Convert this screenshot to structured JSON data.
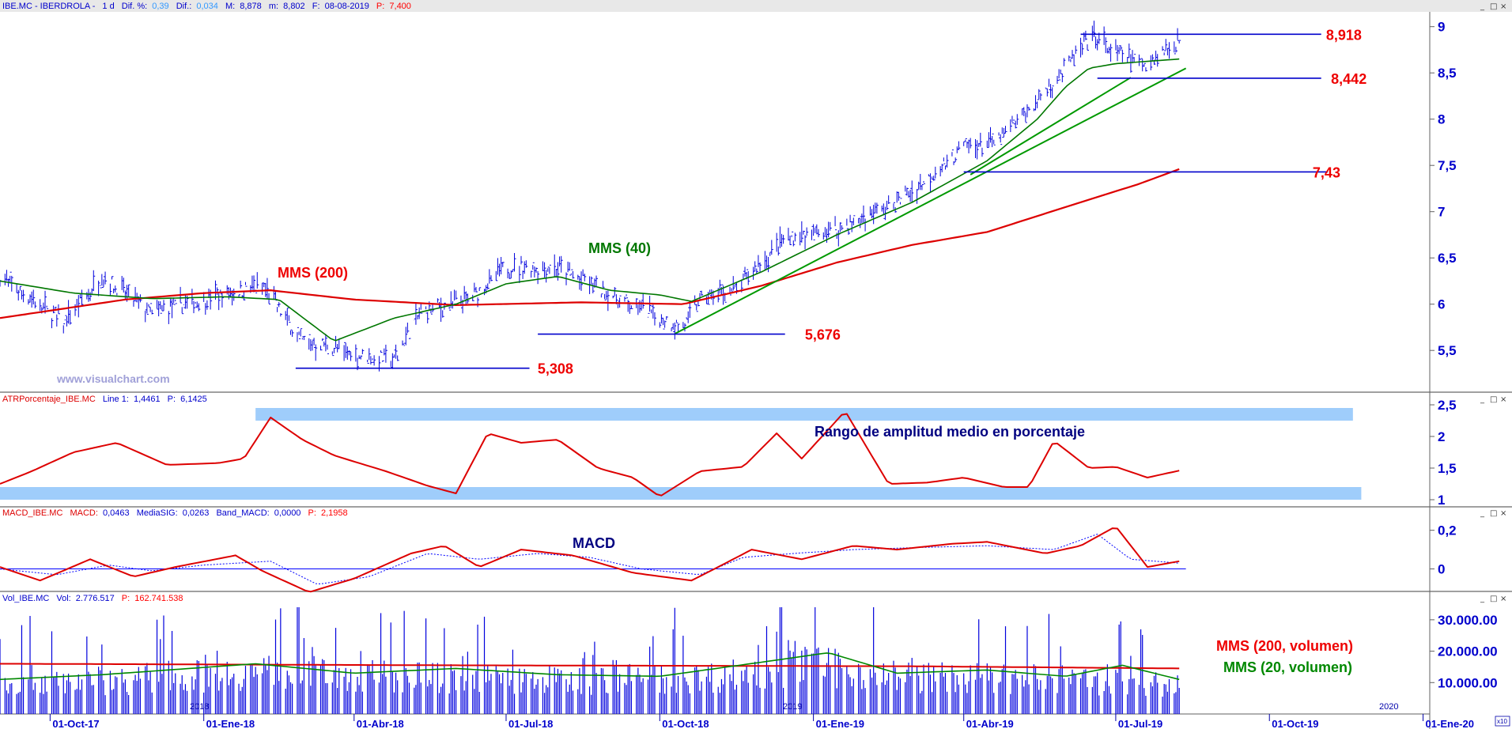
{
  "colors": {
    "price": "#0000dd",
    "mms200": "#dd0000",
    "mms40": "#007700",
    "trend": "#009900",
    "level": "#0000cc",
    "atr": "#dd0000",
    "band": "#9fcdfb",
    "macd": "#dd0000",
    "signal": "#0000ff",
    "volume": "#0000dd",
    "vol_mms200": "#dd0000",
    "vol_mms20": "#008800",
    "axis_text": "#0000cc",
    "annotation_red": "#ee0000",
    "annotation_green": "#007700",
    "annotation_navy": "#000080"
  },
  "header": {
    "price": {
      "symbol": "IBE.MC - IBERDROLA -",
      "period": "1 d",
      "dif_pct_label": "Dif. %:",
      "dif_pct": "0,39",
      "dif_label": "Dif.:",
      "dif": "0,034",
      "max_label": "M:",
      "max": "8,878",
      "min_label": "m:",
      "min": "8,802",
      "date_label": "F:",
      "date": "08-08-2019",
      "p_label": "P:",
      "p": "7,400"
    },
    "atr": {
      "name": "ATRPorcentaje_IBE.MC",
      "line_label": "Line 1:",
      "line": "1,4461",
      "p_label": "P:",
      "p": "6,1425"
    },
    "macd": {
      "name": "MACD_IBE.MC",
      "macd_label": "MACD:",
      "macd": "0,0463",
      "sig_label": "MediaSIG:",
      "sig": "0,0263",
      "band_label": "Band_MACD:",
      "band": "0,0000",
      "p_label": "P:",
      "p": "2,1958"
    },
    "volume": {
      "name": "Vol_IBE.MC",
      "vol_label": "Vol:",
      "vol": "2.776.517",
      "p_label": "P:",
      "p": "162.741.538"
    }
  },
  "watermark": "www.visualchart.com",
  "annotations": {
    "mms200": "MMS (200)",
    "mms40": "MMS (40)",
    "atr_title": "Rango de amplitud medio en porcentaje",
    "macd_title": "MACD",
    "vol_mms200": "MMS (200, volumen)",
    "vol_mms20": "MMS (20, volumen)"
  },
  "x_axis": {
    "labels": [
      "01-Oct-17",
      "01-Ene-18",
      "01-Abr-18",
      "01-Jul-18",
      "01-Oct-18",
      "01-Ene-19",
      "01-Abr-19",
      "01-Jul-19",
      "01-Oct-19",
      "01-Ene-20"
    ],
    "year_markers": [
      "2018",
      "2019",
      "2020"
    ],
    "scale_marker": "x10"
  },
  "chart_data": [
    {
      "type": "line",
      "title": "IBE.MC - IBERDROLA - 1 d",
      "x_range": [
        "2017-09-01",
        "2020-01-05"
      ],
      "ylim": [
        5.1,
        9.1
      ],
      "y_ticks": [
        "5,5",
        "6",
        "6,5",
        "7",
        "7,5",
        "8",
        "8,5",
        "9"
      ],
      "series": [
        {
          "name": "MMS (200)",
          "x": [
            "2017-09-01",
            "2017-11-15",
            "2018-01-01",
            "2018-02-10",
            "2018-04-01",
            "2018-06-01",
            "2018-08-15",
            "2018-10-15",
            "2018-12-01",
            "2019-01-15",
            "2019-03-01",
            "2019-04-15",
            "2019-06-01",
            "2019-07-15",
            "2019-08-08"
          ],
          "values": [
            5.85,
            6.05,
            6.12,
            6.15,
            6.05,
            5.99,
            6.02,
            6.0,
            6.2,
            6.45,
            6.64,
            6.78,
            7.05,
            7.3,
            7.46
          ]
        },
        {
          "name": "MMS (40)",
          "x": [
            "2017-09-01",
            "2017-10-15",
            "2017-12-01",
            "2018-01-15",
            "2018-02-15",
            "2018-03-20",
            "2018-04-25",
            "2018-06-01",
            "2018-07-01",
            "2018-08-01",
            "2018-09-01",
            "2018-10-01",
            "2018-10-20",
            "2018-12-01",
            "2019-01-15",
            "2019-03-01",
            "2019-04-15",
            "2019-05-15",
            "2019-06-01",
            "2019-06-15",
            "2019-07-01",
            "2019-08-08"
          ],
          "values": [
            6.25,
            6.12,
            6.06,
            6.08,
            6.05,
            5.6,
            5.85,
            6.0,
            6.22,
            6.3,
            6.15,
            6.1,
            6.03,
            6.35,
            6.75,
            7.1,
            7.55,
            8.0,
            8.35,
            8.55,
            8.6,
            8.65
          ]
        }
      ],
      "price_path": {
        "x": [
          "2017-09-01",
          "2017-10-10",
          "2017-11-01",
          "2017-12-01",
          "2018-01-10",
          "2018-02-05",
          "2018-03-01",
          "2018-03-15",
          "2018-04-01",
          "2018-04-25",
          "2018-05-10",
          "2018-06-10",
          "2018-07-01",
          "2018-08-01",
          "2018-09-01",
          "2018-10-15",
          "2018-10-25",
          "2018-11-15",
          "2018-12-15",
          "2019-01-15",
          "2019-02-15",
          "2019-03-10",
          "2019-04-01",
          "2019-04-20",
          "2019-05-15",
          "2019-06-10",
          "2019-06-20",
          "2019-07-01",
          "2019-07-20",
          "2019-08-08"
        ],
        "values": [
          6.3,
          5.8,
          6.3,
          5.9,
          6.1,
          6.2,
          5.6,
          5.55,
          5.45,
          5.4,
          5.9,
          6.05,
          6.4,
          6.4,
          6.1,
          5.75,
          6.05,
          6.15,
          6.7,
          6.8,
          7.05,
          7.35,
          7.7,
          7.75,
          8.2,
          8.75,
          8.9,
          8.7,
          8.6,
          8.85
        ]
      },
      "levels": [
        {
          "label": "8,918",
          "value": 8.918,
          "x_from": "2019-06-10",
          "x_to": "2019-11-01",
          "label_x": "2019-11-02"
        },
        {
          "label": "8,442",
          "value": 8.442,
          "x_from": "2019-06-20",
          "x_to": "2019-11-01",
          "label_x": "2019-11-05"
        },
        {
          "label": "7,43",
          "value": 7.43,
          "x_from": "2019-04-01",
          "x_to": "2019-11-05",
          "label_x": "2019-10-25"
        },
        {
          "label": "5,676",
          "value": 5.676,
          "x_from": "2018-07-20",
          "x_to": "2018-12-15",
          "label_x": "2018-12-25"
        },
        {
          "label": "5,308",
          "value": 5.308,
          "x_from": "2018-02-25",
          "x_to": "2018-07-15",
          "label_x": "2018-07-18"
        }
      ],
      "trendlines": [
        {
          "x": [
            "2018-10-10",
            "2019-08-12"
          ],
          "values": [
            5.68,
            8.55
          ]
        },
        {
          "x": [
            "2019-04-05",
            "2019-07-10"
          ],
          "values": [
            7.4,
            8.45
          ]
        }
      ]
    },
    {
      "type": "line",
      "title": "ATRPorcentaje_IBE.MC",
      "ylim": [
        0.95,
        2.5
      ],
      "y_ticks": [
        "1",
        "1,5",
        "2",
        "2,5"
      ],
      "bands": [
        {
          "x_from": "2018-02-01",
          "x_to": "2019-11-20",
          "y_from": 2.25,
          "y_to": 2.45
        },
        {
          "x_from": "2017-09-01",
          "x_to": "2019-11-25",
          "y_from": 1.0,
          "y_to": 1.2
        }
      ],
      "series": [
        {
          "name": "Line 1",
          "x": [
            "2017-09-01",
            "2017-09-20",
            "2017-10-15",
            "2017-11-10",
            "2017-12-10",
            "2018-01-10",
            "2018-01-25",
            "2018-02-10",
            "2018-03-01",
            "2018-03-20",
            "2018-04-20",
            "2018-05-15",
            "2018-06-01",
            "2018-06-20",
            "2018-07-10",
            "2018-08-01",
            "2018-08-25",
            "2018-09-15",
            "2018-10-01",
            "2018-10-25",
            "2018-11-20",
            "2018-12-10",
            "2018-12-25",
            "2019-01-20",
            "2019-02-15",
            "2019-03-10",
            "2019-04-01",
            "2019-04-25",
            "2019-05-10",
            "2019-05-25",
            "2019-06-15",
            "2019-07-01",
            "2019-07-20",
            "2019-08-08"
          ],
          "values": [
            1.25,
            1.45,
            1.75,
            1.9,
            1.55,
            1.58,
            1.65,
            2.3,
            1.95,
            1.7,
            1.45,
            1.22,
            1.1,
            2.05,
            1.9,
            1.95,
            1.5,
            1.35,
            1.05,
            1.45,
            1.52,
            2.05,
            1.65,
            2.4,
            1.25,
            1.27,
            1.35,
            1.2,
            1.2,
            1.93,
            1.5,
            1.52,
            1.35,
            1.46
          ]
        }
      ]
    },
    {
      "type": "line",
      "title": "MACD_IBE.MC",
      "ylim": [
        -0.1,
        0.26
      ],
      "y_ticks": [
        "0",
        "0,2"
      ],
      "series": [
        {
          "name": "MACD",
          "x": [
            "2017-09-01",
            "2017-09-25",
            "2017-10-25",
            "2017-11-20",
            "2017-12-15",
            "2018-01-20",
            "2018-02-05",
            "2018-03-05",
            "2018-04-01",
            "2018-05-05",
            "2018-05-25",
            "2018-06-15",
            "2018-07-10",
            "2018-08-10",
            "2018-09-15",
            "2018-10-20",
            "2018-11-05",
            "2018-11-25",
            "2018-12-25",
            "2019-01-25",
            "2019-02-20",
            "2019-03-25",
            "2019-04-15",
            "2019-05-20",
            "2019-06-10",
            "2019-07-01",
            "2019-07-20",
            "2019-08-08"
          ],
          "values": [
            0.01,
            -0.06,
            0.05,
            -0.04,
            0.01,
            0.07,
            -0.01,
            -0.12,
            -0.05,
            0.08,
            0.12,
            0.01,
            0.1,
            0.07,
            -0.02,
            -0.06,
            0.01,
            0.1,
            0.05,
            0.12,
            0.1,
            0.13,
            0.14,
            0.08,
            0.12,
            0.22,
            0.01,
            0.04
          ]
        },
        {
          "name": "MediaSIG",
          "x": [
            "2017-09-01",
            "2017-10-05",
            "2017-11-05",
            "2017-12-01",
            "2018-01-01",
            "2018-02-10",
            "2018-03-10",
            "2018-04-10",
            "2018-05-15",
            "2018-06-15",
            "2018-07-20",
            "2018-08-20",
            "2018-09-20",
            "2018-10-25",
            "2018-11-20",
            "2018-12-20",
            "2019-01-25",
            "2019-03-01",
            "2019-04-15",
            "2019-05-25",
            "2019-06-20",
            "2019-07-10",
            "2019-08-08"
          ],
          "values": [
            0.0,
            -0.03,
            0.02,
            -0.01,
            0.02,
            0.04,
            -0.08,
            -0.04,
            0.08,
            0.05,
            0.08,
            0.06,
            0.0,
            -0.03,
            0.06,
            0.08,
            0.1,
            0.11,
            0.12,
            0.1,
            0.18,
            0.05,
            0.03
          ]
        }
      ],
      "zero_line_until": "2019-08-12"
    },
    {
      "type": "bar",
      "title": "Vol_IBE.MC",
      "ylim": [
        0,
        35000000
      ],
      "y_ticks": [
        "10.000.00",
        "20.000.00",
        "30.000.00"
      ],
      "series": [
        {
          "name": "MMS (200, volumen)",
          "x": [
            "2017-09-01",
            "2018-06-01",
            "2019-03-01",
            "2019-08-08"
          ],
          "values": [
            16000000,
            15500000,
            15200000,
            14500000
          ]
        },
        {
          "name": "MMS (20, volumen)",
          "x": [
            "2017-09-01",
            "2017-11-01",
            "2018-02-01",
            "2018-04-01",
            "2018-06-01",
            "2018-08-01",
            "2018-10-01",
            "2018-12-01",
            "2019-01-10",
            "2019-02-20",
            "2019-04-15",
            "2019-06-01",
            "2019-07-05",
            "2019-08-08"
          ],
          "values": [
            11000000,
            12500000,
            16000000,
            13000000,
            14500000,
            12500000,
            12000000,
            16500000,
            19500000,
            13000000,
            14000000,
            12000000,
            15500000,
            11000000
          ]
        }
      ],
      "volume_profile": {
        "x": [
          "2017-09-01",
          "2017-12-01",
          "2018-02-01",
          "2018-05-01",
          "2018-08-01",
          "2018-11-01",
          "2019-01-01",
          "2019-03-01",
          "2019-06-01",
          "2019-08-08"
        ],
        "values": [
          12000000,
          12000000,
          15000000,
          13000000,
          12000000,
          13000000,
          17000000,
          13000000,
          12000000,
          10000000
        ]
      }
    }
  ]
}
